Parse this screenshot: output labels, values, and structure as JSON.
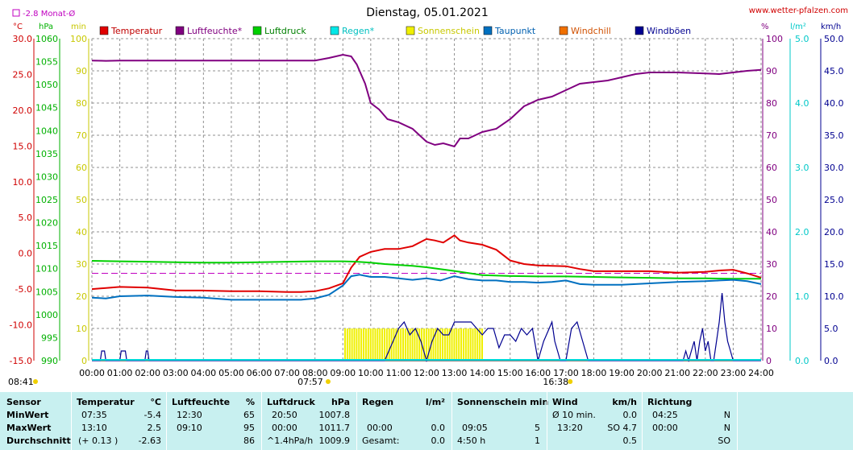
{
  "header": {
    "title": "Dienstag, 05.01.2021",
    "site": "www.wetter-pfalzen.com",
    "month_avg": "-2.8 Monat-Ø"
  },
  "units": {
    "temp": "°C",
    "press": "hPa",
    "min": "min",
    "percent": "%",
    "rain": "l/m²",
    "wind": "km/h"
  },
  "colors": {
    "temperature": "#e00000",
    "humidity": "#800080",
    "pressure": "#00d000",
    "rain": "#00d8d8",
    "sunshine": "#f0f000",
    "dewpoint": "#0070c0",
    "windchill": "#f07000",
    "gust": "#000090",
    "grid": "#808080",
    "avg_line": "#c000c0"
  },
  "legend": [
    {
      "label": "Temperatur",
      "color": "#e00000",
      "text_color": "#c00000"
    },
    {
      "label": "Luftfeuchte*",
      "color": "#800080",
      "text_color": "#800080"
    },
    {
      "label": "Luftdruck",
      "color": "#00d000",
      "text_color": "#008000"
    },
    {
      "label": "Regen*",
      "color": "#00e8e8",
      "text_color": "#00c0c0"
    },
    {
      "label": "Sonnenschein",
      "color": "#f0f000",
      "text_color": "#c8c800"
    },
    {
      "label": "Taupunkt",
      "color": "#0070c0",
      "text_color": "#0060b0"
    },
    {
      "label": "Windchill",
      "color": "#f07000",
      "text_color": "#d05000"
    },
    {
      "label": "Windböen",
      "color": "#000090",
      "text_color": "#000090"
    }
  ],
  "markers": {
    "sunrise": "07:57",
    "sunset": "16:38",
    "first_light": "08:41"
  },
  "chart_data": {
    "type": "line",
    "title": "Dienstag, 05.01.2021",
    "x_ticks": [
      "00:00",
      "01:00",
      "02:00",
      "03:00",
      "04:00",
      "05:00",
      "06:00",
      "07:00",
      "08:00",
      "09:00",
      "10:00",
      "11:00",
      "12:00",
      "13:00",
      "14:00",
      "15:00",
      "16:00",
      "17:00",
      "18:00",
      "19:00",
      "20:00",
      "21:00",
      "22:00",
      "23:00",
      "24:00"
    ],
    "axes": {
      "temp": {
        "unit": "°C",
        "range": [
          -15,
          30
        ],
        "ticks": [
          "30.0",
          "25.0",
          "20.0",
          "15.0",
          "10.0",
          "5.0",
          "0.0",
          "-5.0",
          "-10.0",
          "-15.0"
        ]
      },
      "pressure": {
        "unit": "hPa",
        "range": [
          990,
          1060
        ],
        "ticks": [
          "1060",
          "1055",
          "1050",
          "1045",
          "1040",
          "1035",
          "1030",
          "1025",
          "1020",
          "1015",
          "1010",
          "1005",
          "1000",
          "995",
          "990"
        ]
      },
      "minutes": {
        "unit": "min",
        "range": [
          0,
          100
        ],
        "ticks": [
          "100",
          "90",
          "80",
          "70",
          "60",
          "50",
          "40",
          "30",
          "20",
          "10",
          "0"
        ]
      },
      "humidity": {
        "unit": "%",
        "range": [
          0,
          100
        ],
        "ticks": [
          "100",
          "90",
          "80",
          "70",
          "60",
          "50",
          "40",
          "30",
          "20",
          "10",
          "0"
        ]
      },
      "rain": {
        "unit": "l/m²",
        "range": [
          0,
          5
        ],
        "ticks": [
          "5.0",
          "4.0",
          "3.0",
          "2.0",
          "1.0",
          "0.0"
        ]
      },
      "wind": {
        "unit": "km/h",
        "range": [
          0,
          50
        ],
        "ticks": [
          "50.0",
          "45.0",
          "40.0",
          "35.0",
          "30.0",
          "25.0",
          "20.0",
          "15.0",
          "10.0",
          "5.0",
          "0.0"
        ]
      }
    },
    "month_avg_temp": -2.8,
    "series": [
      {
        "name": "Luftfeuchte*",
        "axis": "humidity",
        "color": "#800080",
        "x": [
          0,
          0.5,
          1,
          2,
          3,
          4,
          5,
          6,
          7,
          7.5,
          8,
          8.5,
          9,
          9.3,
          9.5,
          9.8,
          10,
          10.3,
          10.6,
          11,
          11.5,
          12,
          12.3,
          12.6,
          13,
          13.2,
          13.5,
          14,
          14.5,
          15,
          15.5,
          16,
          16.5,
          17,
          17.5,
          18,
          18.5,
          19,
          19.5,
          20,
          21,
          22,
          22.5,
          23,
          23.5,
          24
        ],
        "y": [
          93.2,
          93.1,
          93.2,
          93.2,
          93.2,
          93.2,
          93.2,
          93.2,
          93.2,
          93.2,
          93.2,
          94,
          95,
          94.5,
          92,
          86,
          80,
          78,
          75,
          74,
          72,
          68,
          67,
          67.5,
          66.5,
          69,
          69,
          71,
          72,
          75,
          79,
          81,
          82,
          84,
          86,
          86.5,
          87,
          88,
          89,
          89.5,
          89.5,
          89.2,
          89,
          89.5,
          90,
          90.3
        ]
      },
      {
        "name": "Temperatur",
        "axis": "temp",
        "color": "#e00000",
        "x": [
          0,
          1,
          2,
          3,
          4,
          5,
          6,
          7,
          7.5,
          8,
          8.5,
          9,
          9.3,
          9.6,
          10,
          10.5,
          11,
          11.5,
          12,
          12.3,
          12.6,
          13,
          13.2,
          13.5,
          14,
          14.5,
          15,
          15.5,
          16,
          17,
          17.5,
          18,
          19,
          20,
          21,
          22,
          22.5,
          23,
          23.5,
          24
        ],
        "y": [
          -5.0,
          -4.7,
          -4.8,
          -5.2,
          -5.2,
          -5.3,
          -5.3,
          -5.4,
          -5.4,
          -5.3,
          -4.9,
          -4.2,
          -2.0,
          -0.5,
          0.2,
          0.6,
          0.6,
          1.0,
          2.0,
          1.8,
          1.5,
          2.5,
          1.8,
          1.5,
          1.2,
          0.5,
          -1.0,
          -1.5,
          -1.7,
          -1.8,
          -2.2,
          -2.5,
          -2.5,
          -2.5,
          -2.7,
          -2.6,
          -2.4,
          -2.3,
          -2.8,
          -3.4
        ]
      },
      {
        "name": "Luftdruck",
        "axis": "pressure",
        "color": "#00d000",
        "x": [
          0,
          1,
          2,
          3,
          4,
          5,
          6,
          7,
          8,
          9,
          9.5,
          10,
          10.5,
          11,
          11.5,
          12,
          13,
          14,
          15,
          16,
          17,
          18,
          19,
          20,
          21,
          22,
          23,
          24
        ],
        "y": [
          1011.7,
          1011.6,
          1011.5,
          1011.4,
          1011.3,
          1011.3,
          1011.4,
          1011.5,
          1011.6,
          1011.6,
          1011.5,
          1011.3,
          1011.0,
          1010.8,
          1010.6,
          1010.3,
          1009.5,
          1008.6,
          1008.4,
          1008.3,
          1008.3,
          1008.2,
          1008.1,
          1008.0,
          1007.9,
          1007.9,
          1007.8,
          1007.8
        ]
      },
      {
        "name": "Taupunkt",
        "axis": "temp",
        "color": "#0070c0",
        "x": [
          0,
          0.5,
          1,
          2,
          3,
          4,
          5,
          6,
          7,
          7.5,
          8,
          8.5,
          9,
          9.3,
          9.6,
          10,
          10.5,
          11,
          11.5,
          12,
          12.5,
          13,
          13.5,
          14,
          14.5,
          15,
          15.5,
          16,
          16.5,
          17,
          17.5,
          18,
          19,
          20,
          21,
          22,
          22.5,
          23,
          23.5,
          24
        ],
        "y": [
          -6.2,
          -6.3,
          -6.0,
          -5.9,
          -6.1,
          -6.2,
          -6.5,
          -6.5,
          -6.5,
          -6.5,
          -6.3,
          -5.8,
          -4.5,
          -3.2,
          -3.0,
          -3.3,
          -3.3,
          -3.5,
          -3.7,
          -3.5,
          -3.8,
          -3.2,
          -3.6,
          -3.8,
          -3.8,
          -4.0,
          -4.0,
          -4.1,
          -4.0,
          -3.8,
          -4.3,
          -4.4,
          -4.4,
          -4.2,
          -4.0,
          -3.9,
          -3.8,
          -3.7,
          -3.9,
          -4.3
        ]
      }
    ],
    "wind_gusts": {
      "name": "Windböen",
      "axis": "wind",
      "color": "#000090",
      "x": [
        0,
        0.3,
        0.35,
        0.45,
        0.5,
        1,
        1.05,
        1.1,
        1.2,
        1.25,
        1.9,
        1.95,
        2.0,
        2.05,
        10,
        10.5,
        10.8,
        11.0,
        11.2,
        11.4,
        11.6,
        11.8,
        12.0,
        12.2,
        12.4,
        12.6,
        12.8,
        13.0,
        13.2,
        13.4,
        13.6,
        13.8,
        14.0,
        14.2,
        14.4,
        14.6,
        14.8,
        15.0,
        15.2,
        15.4,
        15.6,
        15.8,
        16.0,
        16.2,
        16.4,
        16.5,
        16.6,
        16.8,
        17.0,
        17.2,
        17.4,
        17.6,
        17.8,
        21.0,
        21.2,
        21.3,
        21.4,
        21.5,
        21.6,
        21.7,
        21.8,
        21.9,
        22.0,
        22.1,
        22.2,
        22.3,
        22.4,
        22.5,
        22.6,
        22.7,
        22.8,
        22.9,
        23.0,
        23.1,
        24
      ],
      "y": [
        0,
        0,
        1.5,
        1.5,
        0,
        0,
        1.5,
        1.5,
        1.5,
        0,
        0,
        1.5,
        1.5,
        0,
        0,
        0,
        3,
        5,
        6,
        4,
        5,
        3,
        0,
        3,
        5,
        4,
        4,
        6,
        6,
        6,
        6,
        5,
        4,
        5,
        5,
        2,
        4,
        4,
        3,
        5,
        4,
        5,
        0,
        3,
        5,
        6,
        3,
        0,
        0,
        5,
        6,
        3,
        0,
        0,
        0,
        1.5,
        0,
        1.5,
        3,
        0,
        3,
        5,
        1.5,
        3,
        0,
        0,
        3,
        6,
        10.5,
        6,
        3,
        1.5,
        0,
        0,
        0
      ]
    },
    "sunshine_minutes": {
      "name": "Sonnenschein",
      "range_h": [
        9.05,
        14.0
      ],
      "minutes_per_10": 5
    }
  },
  "stats": {
    "headers": {
      "sensor": "Sensor",
      "temp": "Temperatur",
      "temp_unit": "°C",
      "hum": "Luftfeuchte",
      "hum_unit": "%",
      "press": "Luftdruck",
      "press_unit": "hPa",
      "rain": "Regen",
      "rain_unit": "l/m²",
      "sun": "Sonnenschein min",
      "wind": "Wind",
      "wind_unit": "km/h",
      "dir": "Richtung"
    },
    "rows": [
      {
        "label": "MinWert",
        "temp_time": "07:35",
        "temp_val": "-5.4",
        "hum_time": "12:30",
        "hum_val": "65",
        "press_time": "20:50",
        "press_val": "1007.8",
        "rain_time": "",
        "rain_val": "",
        "sun_time": "",
        "sun_val": "",
        "wind_time": "Ø 10 min.",
        "wind_val": "0.0",
        "dir_time": "04:25",
        "dir_val": "N"
      },
      {
        "label": "MaxWert",
        "temp_time": "13:10",
        "temp_val": "2.5",
        "hum_time": "09:10",
        "hum_val": "95",
        "press_time": "00:00",
        "press_val": "1011.7",
        "rain_time": "00:00",
        "rain_val": "0.0",
        "sun_time": "09:05",
        "sun_val": "5",
        "wind_time": "13:20",
        "wind_val": "SO 4.7",
        "dir_time": "00:00",
        "dir_val": "N"
      },
      {
        "label": "Durchschnitt",
        "temp_time": "(+ 0.13 )",
        "temp_val": "-2.63",
        "hum_time": "",
        "hum_val": "86",
        "press_time": "^1.4hPa/h",
        "press_val": "1009.9",
        "rain_time": "Gesamt:",
        "rain_val": "0.0",
        "sun_time": "4:50 h",
        "sun_val": "1",
        "wind_time": "",
        "wind_val": "0.5",
        "dir_time": "",
        "dir_val": "SO"
      }
    ]
  }
}
